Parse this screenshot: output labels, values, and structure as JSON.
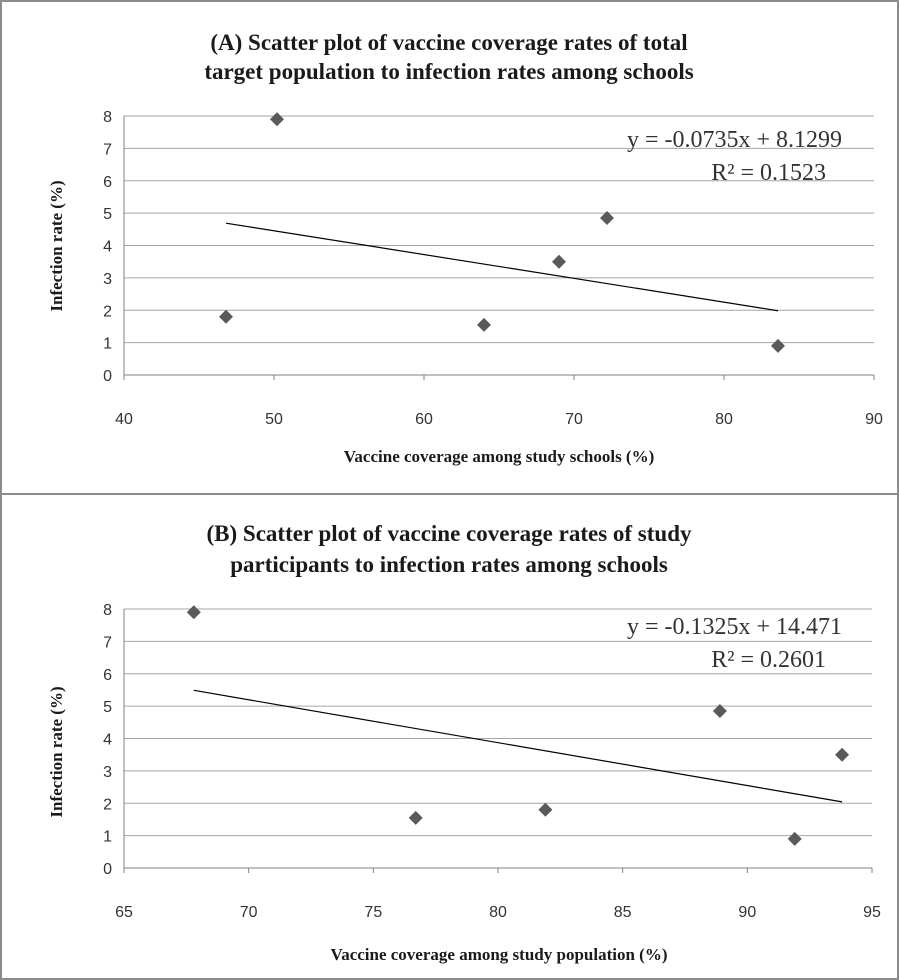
{
  "chart_data": [
    {
      "type": "scatter",
      "title_lines": [
        "(A) Scatter plot of vaccine coverage rates of total",
        "target population to infection rates among schools"
      ],
      "xlabel": "Vaccine coverage among study schools (%)",
      "ylabel": "Infection rate (%)",
      "xlim": [
        40,
        90
      ],
      "ylim": [
        0,
        8
      ],
      "xticks": [
        40,
        50,
        60,
        70,
        80,
        90
      ],
      "yticks": [
        0,
        1,
        2,
        3,
        4,
        5,
        6,
        7,
        8
      ],
      "grid": "horizontal",
      "series": [
        {
          "x": [
            46.8,
            50.2,
            64.0,
            69.0,
            72.2,
            83.6
          ],
          "y": [
            1.8,
            7.9,
            1.55,
            3.5,
            4.85,
            0.9
          ]
        }
      ],
      "trendline": {
        "type": "linear",
        "slope": -0.0735,
        "intercept": 8.1299,
        "x_range": [
          46.8,
          83.6
        ]
      },
      "annotations": [
        "y = -0.0735x + 8.1299",
        "R² = 0.1523"
      ]
    },
    {
      "type": "scatter",
      "title_lines": [
        "(B) Scatter plot of vaccine coverage rates of study",
        "participants to infection rates among schools"
      ],
      "xlabel": "Vaccine coverage among study population (%)",
      "ylabel": "Infection rate (%)",
      "xlim": [
        65,
        95
      ],
      "ylim": [
        0,
        8
      ],
      "xticks": [
        65,
        70,
        75,
        80,
        85,
        90,
        95
      ],
      "yticks": [
        0,
        1,
        2,
        3,
        4,
        5,
        6,
        7,
        8
      ],
      "grid": "horizontal",
      "series": [
        {
          "x": [
            67.8,
            76.7,
            81.9,
            88.9,
            91.9,
            93.8
          ],
          "y": [
            7.9,
            1.55,
            1.8,
            4.85,
            0.9,
            3.5
          ]
        }
      ],
      "trendline": {
        "type": "linear",
        "slope": -0.1325,
        "intercept": 14.471,
        "x_range": [
          67.8,
          93.8
        ]
      },
      "annotations": [
        "y = -0.1325x + 14.471",
        "R² = 0.2601"
      ]
    }
  ]
}
